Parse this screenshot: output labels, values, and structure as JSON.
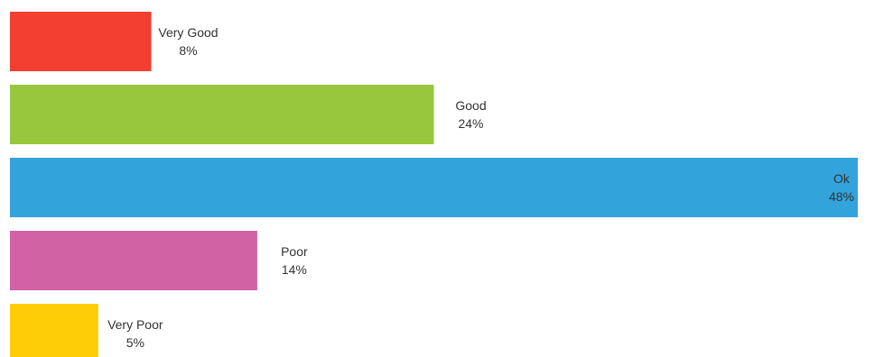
{
  "chart_data": {
    "type": "bar",
    "orientation": "horizontal",
    "title": "",
    "xlabel": "",
    "ylabel": "",
    "categories": [
      "Very Good",
      "Good",
      "Ok",
      "Poor",
      "Very Poor"
    ],
    "values": [
      8,
      24,
      48,
      14,
      5
    ],
    "value_labels": [
      "8%",
      "24%",
      "48%",
      "14%",
      "5%"
    ],
    "colors": [
      "#f23f32",
      "#98c73d",
      "#33a3dc",
      "#d162a4",
      "#ffcc08"
    ],
    "xlim": [
      0,
      48
    ],
    "grid": false,
    "legend": "none"
  }
}
